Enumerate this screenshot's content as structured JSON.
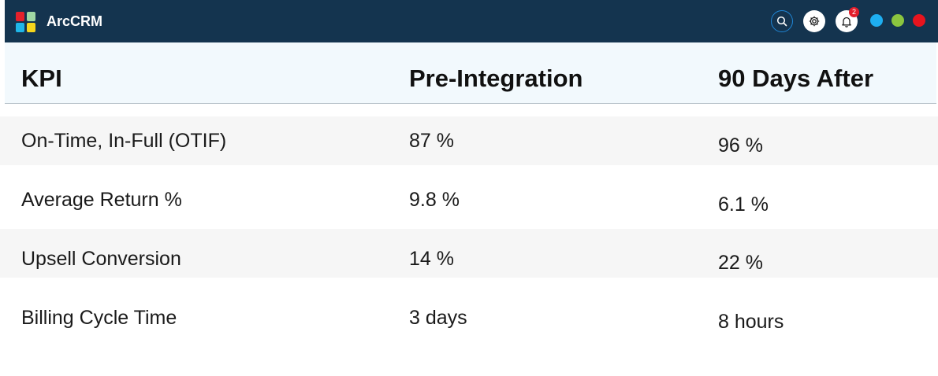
{
  "app": {
    "title": "ArcCRM",
    "logo_colors": [
      "#e5212b",
      "#9fd8a4",
      "#1fb6e8",
      "#f5d51c"
    ],
    "bar_color": "#14344f"
  },
  "toolbar": {
    "search_icon": "search-icon",
    "settings_icon": "gear-icon",
    "notifications_icon": "bell-icon",
    "notification_count": "2",
    "badge_color": "#e11d2a",
    "window_dots": [
      {
        "name": "dot-blue",
        "color": "#1eaef0"
      },
      {
        "name": "dot-green",
        "color": "#8bc53f"
      },
      {
        "name": "dot-red",
        "color": "#e8141e"
      }
    ]
  },
  "table": {
    "headers": [
      "KPI",
      "Pre-Integration",
      "90 Days After"
    ],
    "rows": [
      [
        "On-Time, In-Full (OTIF)",
        "87 %",
        "96 %"
      ],
      [
        "Average Return %",
        "9.8 %",
        "6.1 %"
      ],
      [
        "Upsell Conversion",
        "14 %",
        "22 %"
      ],
      [
        "Billing Cycle Time",
        "3 days",
        "8 hours"
      ]
    ]
  }
}
